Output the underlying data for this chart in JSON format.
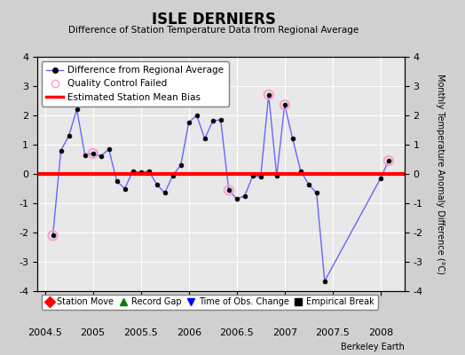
{
  "title": "ISLE DERNIERS",
  "subtitle": "Difference of Station Temperature Data from Regional Average",
  "ylabel_right": "Monthly Temperature Anomaly Difference (°C)",
  "watermark": "Berkeley Earth",
  "xlim": [
    2004.42,
    2008.25
  ],
  "ylim": [
    -4,
    4
  ],
  "yticks": [
    -4,
    -3,
    -2,
    -1,
    0,
    1,
    2,
    3,
    4
  ],
  "xticks": [
    2004.5,
    2005.0,
    2005.5,
    2006.0,
    2006.5,
    2007.0,
    2007.5,
    2008.0
  ],
  "xtick_labels": [
    "2004.5",
    "2005",
    "2005.5",
    "2006",
    "2006.5",
    "2007",
    "2007.5",
    "2008"
  ],
  "mean_bias": 0.0,
  "line_color": "#6666FF",
  "bias_color": "#FF0000",
  "qc_color": "#FF99CC",
  "plot_bg": "#E8E8E8",
  "fig_bg": "#D0D0D0",
  "data_x": [
    2004.583,
    2004.667,
    2004.75,
    2004.833,
    2004.917,
    2005.0,
    2005.083,
    2005.167,
    2005.25,
    2005.333,
    2005.417,
    2005.5,
    2005.583,
    2005.667,
    2005.75,
    2005.833,
    2005.917,
    2006.0,
    2006.083,
    2006.167,
    2006.25,
    2006.333,
    2006.417,
    2006.5,
    2006.583,
    2006.667,
    2006.75,
    2006.833,
    2006.917,
    2007.0,
    2007.083,
    2007.167,
    2007.25,
    2007.333,
    2007.417,
    2008.0,
    2008.083
  ],
  "data_y": [
    -2.1,
    0.8,
    1.3,
    2.2,
    0.65,
    0.7,
    0.6,
    0.85,
    -0.25,
    -0.5,
    0.1,
    0.05,
    0.1,
    -0.35,
    -0.65,
    -0.05,
    0.3,
    1.75,
    2.0,
    1.2,
    1.8,
    1.85,
    -0.55,
    -0.85,
    -0.75,
    -0.07,
    -0.1,
    2.7,
    -0.07,
    2.35,
    1.2,
    0.1,
    -0.35,
    -0.65,
    -3.65,
    -0.15,
    0.45
  ],
  "qc_failed_x": [
    2004.583,
    2005.0,
    2006.417,
    2006.833,
    2007.0,
    2008.083
  ],
  "qc_failed_y": [
    -2.1,
    0.7,
    -0.55,
    2.7,
    2.35,
    0.45
  ],
  "legend1": [
    {
      "label": "Difference from Regional Average",
      "type": "line"
    },
    {
      "label": "Quality Control Failed",
      "type": "qc"
    },
    {
      "label": "Estimated Station Mean Bias",
      "type": "bias"
    }
  ],
  "legend2": [
    {
      "label": "Station Move",
      "color": "#FF0000",
      "marker": "D"
    },
    {
      "label": "Record Gap",
      "color": "#008000",
      "marker": "^"
    },
    {
      "label": "Time of Obs. Change",
      "color": "#0000FF",
      "marker": "v"
    },
    {
      "label": "Empirical Break",
      "color": "#000000",
      "marker": "s"
    }
  ]
}
